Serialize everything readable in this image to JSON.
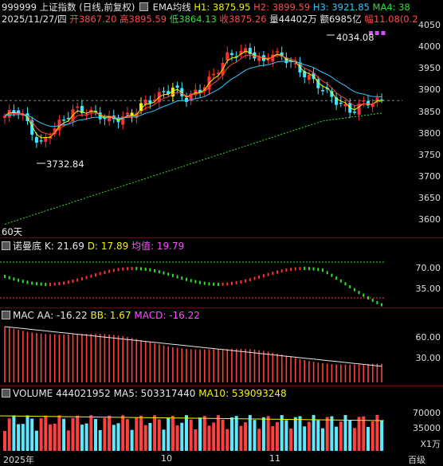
{
  "header": {
    "code": "999999",
    "name": "上证指数",
    "mode": "(日线,前复权)",
    "indicator_icon": "settings-square-icon",
    "indicator": "EMA均线",
    "h1": "H1: 3875.95",
    "h2": "H2: 3899.59",
    "h3": "H3: 3921.85",
    "ma4": "MA4: 38",
    "date": "2025/11/27/四",
    "open": "开3867.20",
    "high": "高3895.59",
    "low": "低3864.13",
    "close": "收3875.26",
    "volume": "量44402万",
    "amount": "额6985亿",
    "amplitude": "幅11.08(0.2"
  },
  "price_axis": [
    "4050",
    "4000",
    "3950",
    "3900",
    "3850",
    "3800",
    "3750",
    "3700",
    "3650",
    "3600"
  ],
  "annotations": {
    "high": "4034.08",
    "low": "3732.84",
    "ma_label": "60天"
  },
  "kdj": {
    "name": "诺曼底",
    "k": "K: 21.69",
    "d": "D: 17.89",
    "avg": "均值: 19.79",
    "axis": [
      "70.00",
      "35.00"
    ]
  },
  "macd": {
    "name": "MAC",
    "aa": "AA: -16.22",
    "bb": "BB: 1.67",
    "macd": "MACD: -16.22",
    "axis": [
      "60.00",
      "30.00"
    ]
  },
  "vol": {
    "name": "VOLUME",
    "value": "444021952",
    "ma5": "MA5: 503317440",
    "ma10": "MA10: 539093248",
    "axis": [
      "70000",
      "35000"
    ],
    "unit": "X1万"
  },
  "x_axis": {
    "left": "2025年",
    "oct": "10",
    "nov": "11",
    "right": "百级"
  },
  "colors": {
    "up": "#ff3030",
    "down": "#40e8ff",
    "yellow": "#f5f500",
    "magenta": "#ff50ff",
    "ema_green": "#30e030"
  }
}
